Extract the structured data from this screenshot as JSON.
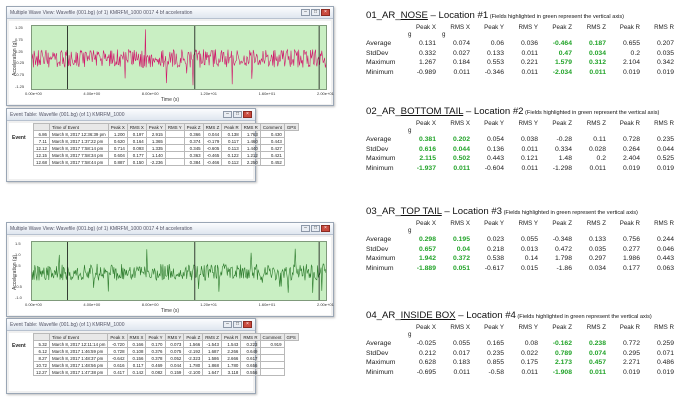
{
  "left_top": {
    "window_title": "Multiple Wave View: Wavefile (001.bg) (of 1) KMRFM_1000 0017 4 bf acceleration",
    "chart": {
      "ylabel": "Acceleration (g)",
      "xlabel": "Time (s)",
      "yticks": [
        "1.25",
        "0.75",
        "0.25",
        "-0.25",
        "-0.75",
        "-1.25"
      ],
      "xticks": [
        "0.00e+00",
        "4.00e+00",
        "8.00e+00",
        "1.20e+01",
        "1.60e+01",
        "2.00e+01"
      ],
      "trace_color": "#d0176a"
    },
    "events_title": "Event Table: Wavefile (001.bg) (of 1) KMRFM_1000",
    "events_label": "Event",
    "headers": [
      "Time of Event",
      "Peak X",
      "RMS X",
      "Peak Y",
      "RMS Y",
      "Peak Z",
      "RMS Z",
      "Peak R",
      "RMS R",
      "Comment",
      "GPS"
    ],
    "rows": [
      [
        "6.86",
        "March 8, 2017 12:36:39 pm",
        "1.200",
        "0.197",
        "2.915",
        "",
        "0.366",
        "0.044",
        "0.138",
        "1.763",
        "0.430"
      ],
      [
        "7.11",
        "March 8, 2017 1:37:22 pm",
        "0.620",
        "0.164",
        "1.365",
        "",
        "0.374",
        "-0.179",
        "0.117",
        "1.460",
        "0.443"
      ],
      [
        "12.12",
        "March 8, 2017 7:58:14 pm",
        "0.714",
        "0.093",
        "1.335",
        "",
        "0.345",
        "-0.605",
        "0.113",
        "1.440",
        "0.427"
      ],
      [
        "12.15",
        "March 8, 2017 7:58:34 pm",
        "0.604",
        "0.177",
        "1.140",
        "",
        "0.363",
        "-0.465",
        "0.122",
        "1.212",
        "0.421"
      ],
      [
        "12.68",
        "March 8, 2017 7:58:44 pm",
        "0.887",
        "0.150",
        "-2.236",
        "",
        "0.384",
        "-0.466",
        "0.112",
        "2.250",
        "0.452"
      ]
    ]
  },
  "left_bottom": {
    "window_title": "Multiple Wave View: Wavefile (001.bg) (of 1) KMRFM_1000 0017 4 bf acceleration",
    "chart": {
      "ylabel": "Acceleration (g)",
      "xlabel": "Time (s)",
      "yticks": [
        "1.5",
        "1.0",
        "0.5",
        "0",
        "-0.5",
        "-1.0"
      ],
      "xticks": [
        "0.00e+00",
        "4.00e+00",
        "8.00e+00",
        "1.20e+01",
        "1.60e+01",
        "2.00e+01"
      ],
      "trace_color": "#2b7a2b"
    },
    "events_title": "Event Table: Wavefile (001.bg) (of 1) KMRFM_1000",
    "events_label": "Event",
    "headers": [
      "Time of Event",
      "Peak X",
      "RMS X",
      "Peak Y",
      "RMS Y",
      "Peak Z",
      "RMS Z",
      "Peak R",
      "RMS R",
      "Comment",
      "GPS"
    ],
    "rows": [
      [
        "5.32",
        "March 8, 2017 12:11:14 pm",
        "-0.720",
        "0.166",
        "0.170",
        "0.073",
        "1.566",
        "-1.543",
        "1.543",
        "0.223",
        "0.919"
      ],
      [
        "6.12",
        "March 8, 2017 1:46:59 pm",
        "0.728",
        "0.108",
        "0.376",
        "0.075",
        "-2.192",
        "1.687",
        "2.266",
        "0.649",
        ""
      ],
      [
        "8.27",
        "March 8, 2017 1:48:37 pm",
        "-0.642",
        "0.156",
        "0.378",
        "0.052",
        "-2.323",
        "1.586",
        "2.666",
        "0.617",
        ""
      ],
      [
        "10.72",
        "March 8, 2017 1:48:56 pm",
        "0.616",
        "0.117",
        "0.469",
        "0.044",
        "1.780",
        "1.868",
        "1.780",
        "0.656",
        ""
      ],
      [
        "12.27",
        "March 8, 2017 1:47:38 pm",
        "0.417",
        "0.142",
        "0.082",
        "0.159",
        "-2.100",
        "1.647",
        "3.118",
        "0.556",
        ""
      ]
    ]
  },
  "sections": [
    {
      "title_prefix": "01_AR_",
      "title_u": "NOSE",
      "title_rest": " – Location #1",
      "note": " (Fields highlighted in green represent the vertical axis)",
      "headers": [
        "Peak X",
        "RMS X",
        "Peak Y",
        "RMS Y",
        "Peak Z",
        "RMS Z",
        "Peak R",
        "RMS R"
      ],
      "units": [
        "g",
        "g",
        "",
        "",
        "",
        "",
        "",
        ""
      ],
      "green": [
        4,
        5
      ],
      "rows": [
        [
          "Average",
          "0.131",
          "0.074",
          "0.06",
          "0.036",
          "-0.464",
          "0.187",
          "0.655",
          "0.207"
        ],
        [
          "StdDev",
          "0.332",
          "0.027",
          "0.133",
          "0.011",
          "0.47",
          "0.034",
          "0.2",
          "0.035"
        ],
        [
          "Maximum",
          "1.267",
          "0.184",
          "0.553",
          "0.221",
          "1.579",
          "0.312",
          "2.104",
          "0.342"
        ],
        [
          "Minimum",
          "-0.989",
          "0.011",
          "-0.346",
          "0.011",
          "-2.034",
          "0.011",
          "0.019",
          "0.019"
        ]
      ]
    },
    {
      "title_prefix": "02_AR_",
      "title_u": "BOTTOM TAIL",
      "title_rest": " – Location #2",
      "note": " (Fields highlighted in green represent the vertical axis)",
      "headers": [
        "Peak X",
        "RMS X",
        "Peak Y",
        "RMS Y",
        "Peak Z",
        "RMS Z",
        "Peak R",
        "RMS R"
      ],
      "units": [
        "g",
        "",
        "",
        "",
        "",
        "",
        "",
        ""
      ],
      "green": [
        0,
        1
      ],
      "rows": [
        [
          "Average",
          "0.381",
          "0.202",
          "0.054",
          "0.038",
          "-0.28",
          "0.11",
          "0.728",
          "0.235"
        ],
        [
          "StdDev",
          "0.616",
          "0.044",
          "0.136",
          "0.011",
          "0.334",
          "0.028",
          "0.264",
          "0.044"
        ],
        [
          "Maximum",
          "2.115",
          "0.502",
          "0.443",
          "0.121",
          "1.48",
          "0.2",
          "2.404",
          "0.525"
        ],
        [
          "Minimum",
          "-1.937",
          "0.011",
          "-0.604",
          "0.011",
          "-1.298",
          "0.011",
          "0.019",
          "0.019"
        ]
      ]
    },
    {
      "title_prefix": "03_AR_",
      "title_u": "TOP TAIL",
      "title_rest": " – Location #3",
      "note": " (Fields highlighted in green represent the vertical axis)",
      "headers": [
        "Peak X",
        "RMS X",
        "Peak Y",
        "RMS Y",
        "Peak Z",
        "RMS Z",
        "Peak R",
        "RMS R"
      ],
      "units": [
        "g",
        "",
        "",
        "",
        "",
        "",
        "",
        ""
      ],
      "green": [
        0,
        1
      ],
      "rows": [
        [
          "Average",
          "0.298",
          "0.195",
          "0.023",
          "0.055",
          "-0.348",
          "0.133",
          "0.756",
          "0.244"
        ],
        [
          "StdDev",
          "0.657",
          "0.04",
          "0.218",
          "0.013",
          "0.472",
          "0.035",
          "0.277",
          "0.046"
        ],
        [
          "Maximum",
          "1.942",
          "0.372",
          "0.538",
          "0.14",
          "1.798",
          "0.297",
          "1.986",
          "0.443"
        ],
        [
          "Minimum",
          "-1.889",
          "0.051",
          "-0.617",
          "0.015",
          "-1.86",
          "0.034",
          "0.177",
          "0.063"
        ]
      ]
    },
    {
      "title_prefix": "04_AR_",
      "title_u": "INSIDE BOX",
      "title_rest": " – Location #4",
      "note": " (Fields highlighted in green represent the vertical axis)",
      "headers": [
        "Peak X",
        "RMS X",
        "Peak Y",
        "RMS Y",
        "Peak Z",
        "RMS Z",
        "Peak R",
        "RMS R"
      ],
      "units": [
        "g",
        "",
        "",
        "",
        "",
        "",
        "",
        ""
      ],
      "green": [
        4,
        5
      ],
      "rows": [
        [
          "Average",
          "-0.025",
          "0.055",
          "0.165",
          "0.08",
          "-0.162",
          "0.238",
          "0.772",
          "0.259"
        ],
        [
          "StdDev",
          "0.212",
          "0.017",
          "0.235",
          "0.022",
          "0.789",
          "0.074",
          "0.295",
          "0.071"
        ],
        [
          "Maximum",
          "0.628",
          "0.183",
          "0.855",
          "0.175",
          "2.173",
          "0.457",
          "2.271",
          "0.486"
        ],
        [
          "Minimum",
          "-0.695",
          "0.011",
          "-0.58",
          "0.011",
          "-1.908",
          "0.011",
          "0.019",
          "0.019"
        ]
      ]
    }
  ]
}
